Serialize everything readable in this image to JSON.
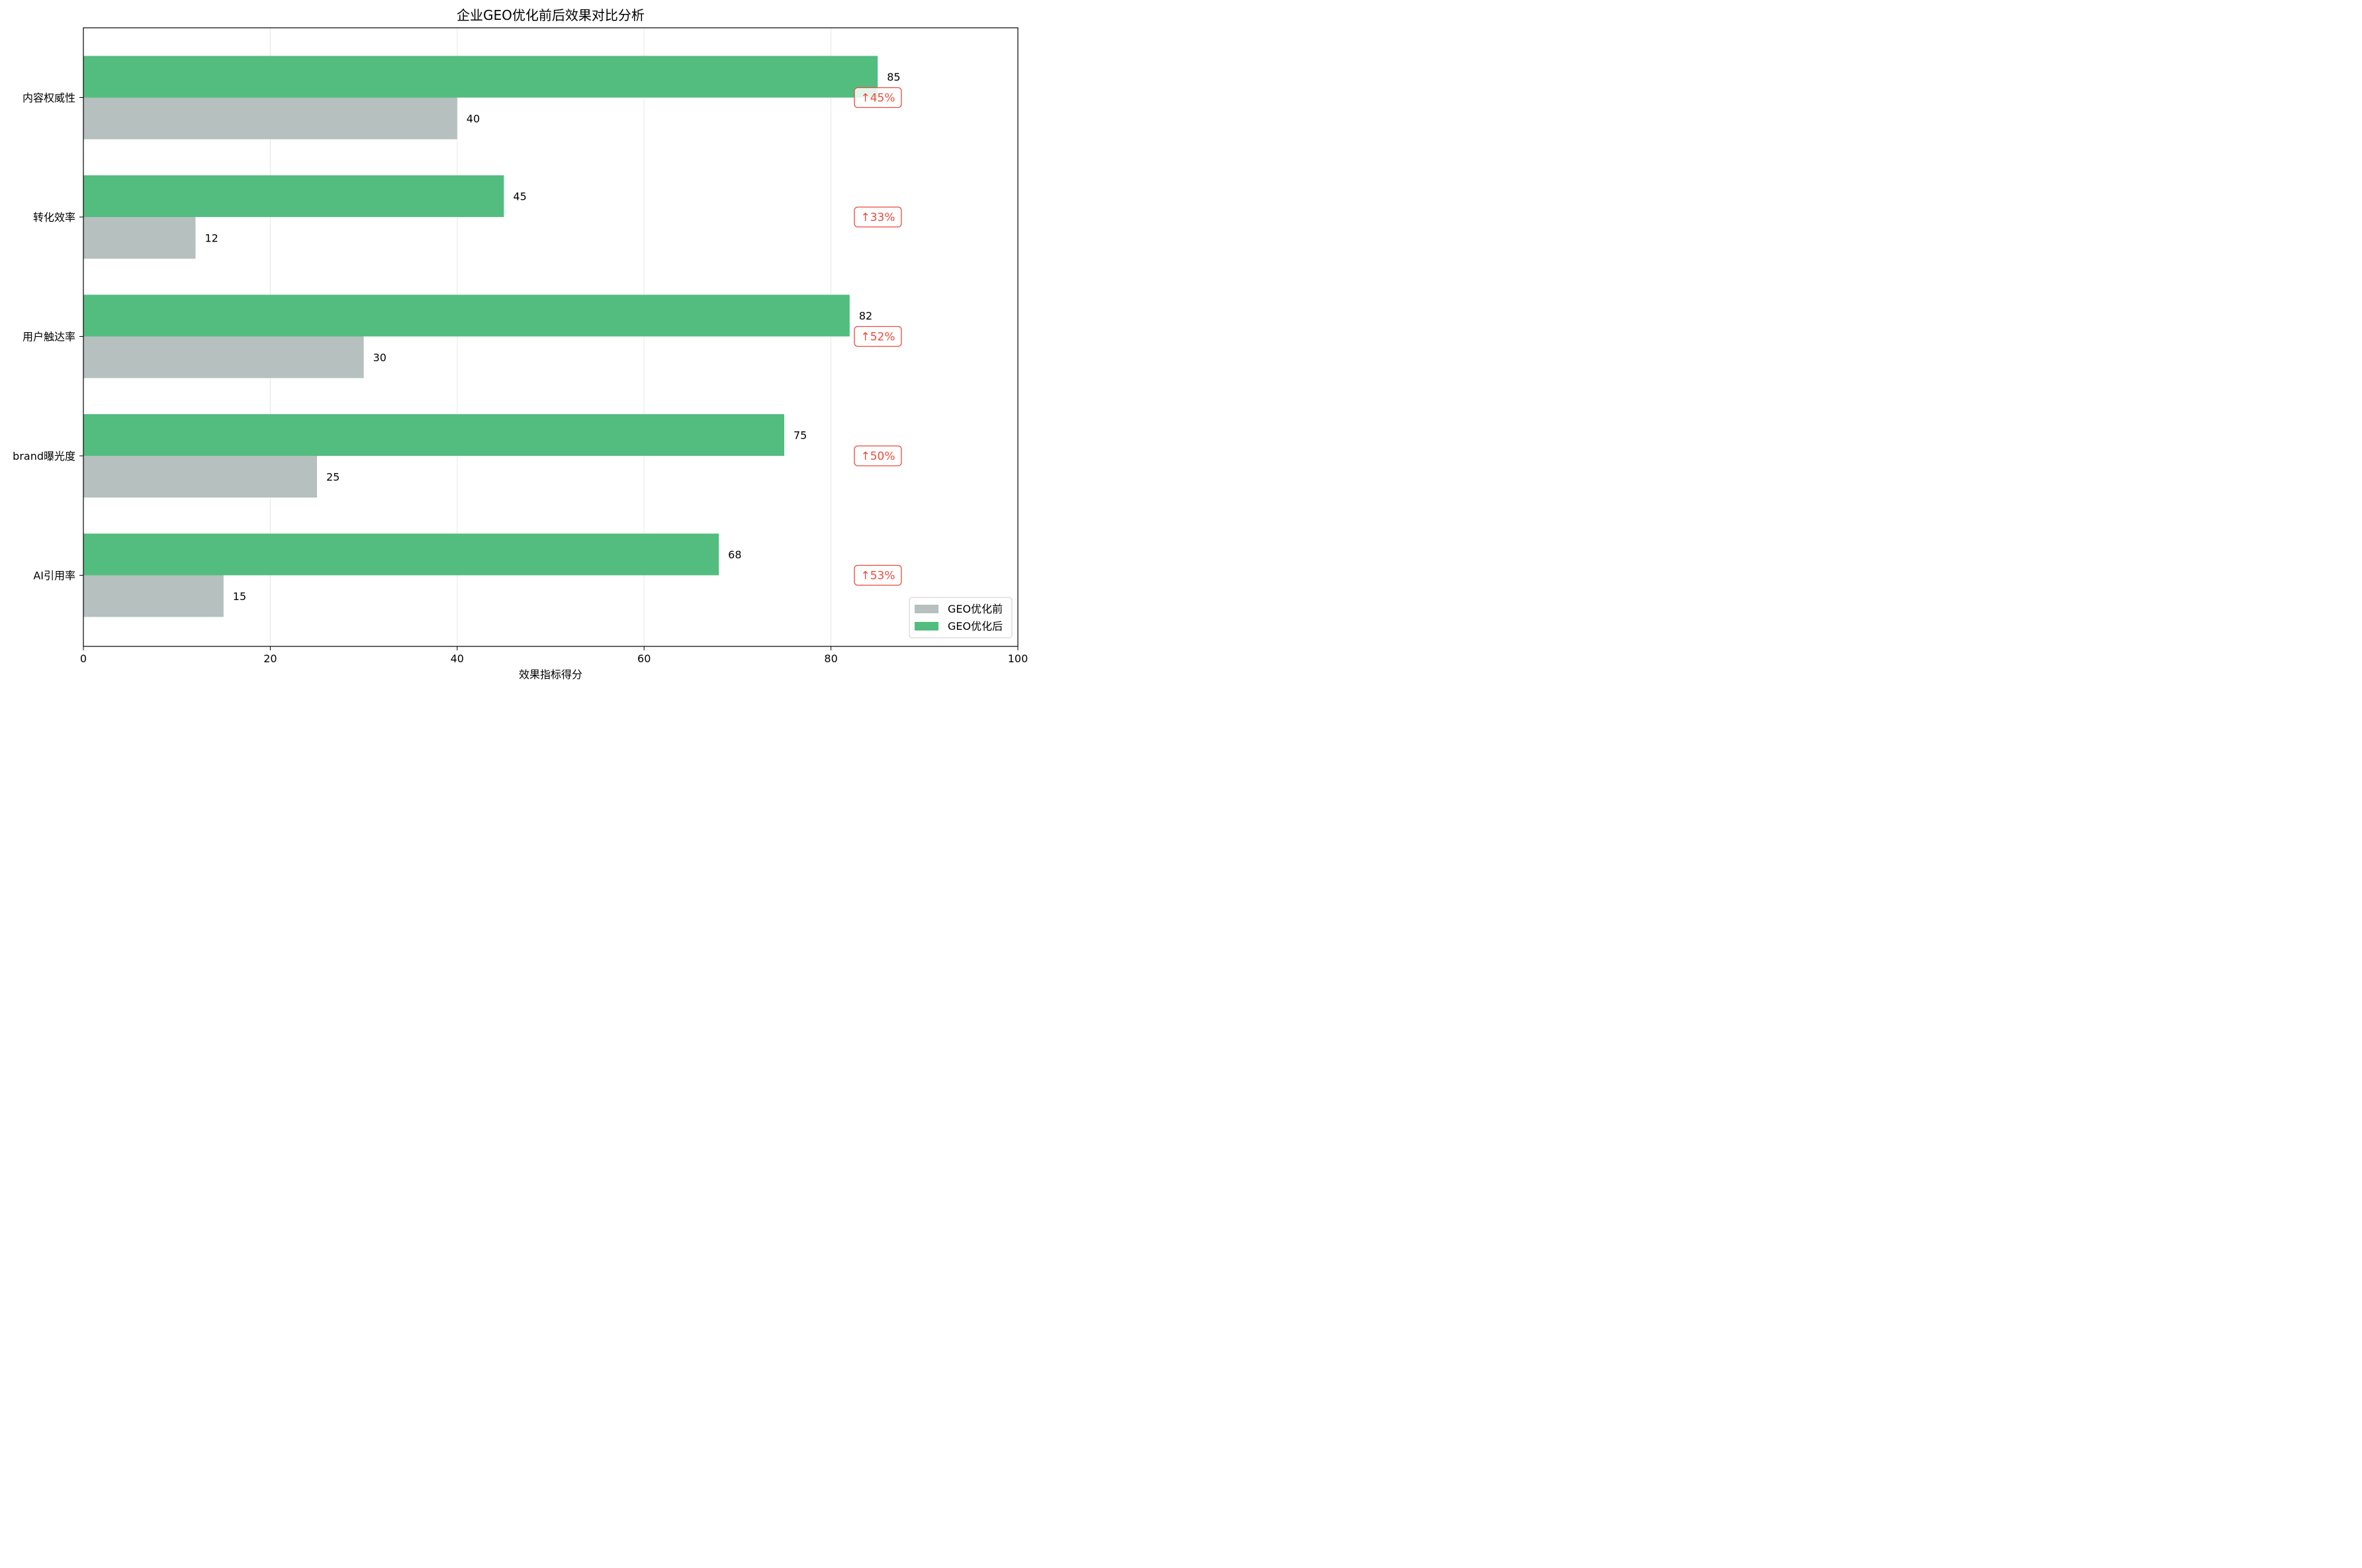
{
  "chart_data": {
    "type": "bar",
    "orientation": "horizontal",
    "title": "企业GEO优化前后效果对比分析",
    "xlabel": "效果指标得分",
    "ylabel": "",
    "xlim": [
      0,
      100
    ],
    "x_ticks": [
      "0",
      "20",
      "40",
      "60",
      "80",
      "100"
    ],
    "categories": [
      "内容权威性",
      "转化效率",
      "用户触达率",
      "brand曝光度",
      "AI引用率"
    ],
    "series": [
      {
        "name": "GEO优化前",
        "color": "#b5c0bf",
        "values": [
          40,
          12,
          30,
          25,
          15
        ]
      },
      {
        "name": "GEO优化后",
        "color": "#52bd7f",
        "values": [
          85,
          45,
          82,
          75,
          68
        ]
      }
    ],
    "annotations": [
      "↑45%",
      "↑33%",
      "↑52%",
      "↑50%",
      "↑53%"
    ],
    "annotation_color": "#e74c3c",
    "grid": "x",
    "legend": "lower-right"
  }
}
